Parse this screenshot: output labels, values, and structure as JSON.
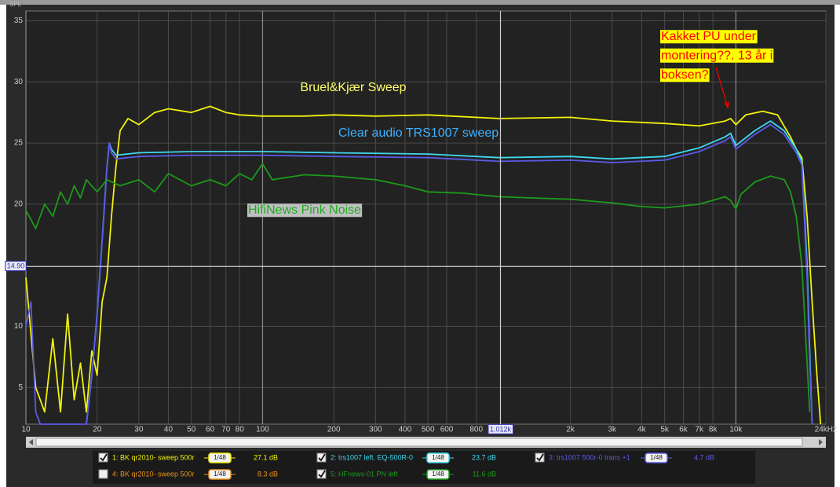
{
  "chart_data": {
    "type": "line",
    "y_label": "SPL",
    "xscale": "log",
    "xlim": [
      10,
      24000
    ],
    "ylim": [
      2,
      35.8
    ],
    "grid": true,
    "background": "#222222",
    "xticks": [
      10,
      20,
      30,
      40,
      50,
      60,
      70,
      80,
      100,
      200,
      300,
      400,
      500,
      600,
      800,
      {
        "value": 2000,
        "label": "2k"
      },
      {
        "value": 3000,
        "label": "3k"
      },
      {
        "value": 4000,
        "label": "4k"
      },
      {
        "value": 5000,
        "label": "5k"
      },
      {
        "value": 6000,
        "label": "6k"
      },
      {
        "value": 7000,
        "label": "7k"
      },
      {
        "value": 8000,
        "label": "8k"
      },
      {
        "value": 10000,
        "label": "10k"
      },
      {
        "value": 24000,
        "label": "24kHz"
      }
    ],
    "yticks": [
      5,
      10,
      20,
      25,
      30,
      35
    ],
    "cursor": {
      "x": 1012,
      "x_label": "1.012k",
      "y": 14.9,
      "y_label": "14.90"
    },
    "series": [
      {
        "name": "1: BK qr2010- sweep 500r",
        "color": "#f2f20a",
        "visible": true,
        "smoothing": "1/48",
        "readout": "27.1 dB",
        "x": [
          10,
          11,
          12,
          13,
          14,
          15,
          16,
          17,
          18,
          19,
          20,
          21,
          22,
          23,
          24,
          25,
          27,
          30,
          35,
          40,
          50,
          60,
          70,
          80,
          100,
          150,
          200,
          300,
          500,
          1000,
          2000,
          3000,
          5000,
          7000,
          9000,
          9500,
          10000,
          11000,
          13000,
          15000,
          17000,
          18000,
          19000,
          20000,
          21000,
          22000,
          22800
        ],
        "values": [
          14,
          5,
          3,
          9,
          3,
          11,
          4,
          7,
          3,
          8,
          6,
          12,
          14,
          19,
          23,
          26,
          27,
          26.5,
          27.5,
          27.8,
          27.5,
          28,
          27.5,
          27.3,
          27.2,
          27.2,
          27.3,
          27.2,
          27.3,
          27,
          27.1,
          26.8,
          26.6,
          26.4,
          26.8,
          27,
          26.5,
          27.3,
          27.6,
          27.3,
          25.5,
          24.5,
          23.8,
          19,
          12,
          6,
          2
        ]
      },
      {
        "name": "2: trs1007 left. EQ-500R-0",
        "color": "#3fd8f0",
        "visible": true,
        "smoothing": "1/48",
        "readout": "23.7 dB",
        "x": [
          18,
          19,
          20,
          21,
          22,
          22.5,
          23,
          24,
          30,
          50,
          100,
          200,
          500,
          1000,
          2000,
          3000,
          5000,
          7000,
          9000,
          9500,
          10000,
          12000,
          14000,
          16000,
          18000,
          19000,
          20000,
          20500,
          21000
        ],
        "values": [
          2,
          6,
          11,
          17,
          23,
          25,
          24.5,
          24,
          24.2,
          24.3,
          24.3,
          24.2,
          24.1,
          23.8,
          23.9,
          23.7,
          23.9,
          24.6,
          25.5,
          25.8,
          24.8,
          26,
          26.8,
          26,
          24.5,
          23.5,
          15,
          8,
          2
        ]
      },
      {
        "name": "3: trs1007 500r-0 trans +1",
        "color": "#5a5ae8",
        "visible": true,
        "smoothing": "1/48",
        "readout": "4.7 dB",
        "x": [
          10,
          10.5,
          11,
          11.5,
          12,
          14,
          18,
          19,
          20,
          21,
          22,
          22.5,
          23,
          24,
          30,
          50,
          100,
          200,
          500,
          1000,
          2000,
          3000,
          5000,
          7000,
          9000,
          9500,
          10000,
          12000,
          14000,
          16000,
          18000,
          19000,
          20000,
          20500,
          21000
        ],
        "values": [
          10,
          12,
          3,
          2,
          2,
          2,
          2,
          6,
          11,
          17,
          23,
          25,
          24.2,
          23.7,
          23.9,
          24,
          24,
          23.9,
          23.8,
          23.5,
          23.6,
          23.4,
          23.6,
          24.3,
          25.2,
          25.5,
          24.5,
          25.7,
          26.5,
          25.7,
          24.2,
          23.2,
          14,
          7,
          2
        ]
      },
      {
        "name": "4: BK qr2010- sweep 500r",
        "color": "#e8901a",
        "visible": false,
        "smoothing": "1/48",
        "readout": "8.3 dB",
        "x": [],
        "values": []
      },
      {
        "name": "5: HFnews-01 PN left",
        "color": "#1c9a1c",
        "visible": true,
        "smoothing": "1/48",
        "readout": "11.6 dB",
        "x": [
          10,
          11,
          12,
          13,
          14,
          15,
          16,
          17,
          18,
          20,
          22,
          25,
          30,
          35,
          40,
          50,
          60,
          70,
          80,
          90,
          100,
          110,
          150,
          200,
          300,
          400,
          500,
          700,
          1000,
          2000,
          3000,
          4000,
          5000,
          7000,
          9000,
          9500,
          10000,
          10500,
          12000,
          14000,
          16000,
          17000,
          18000,
          19000,
          20000,
          20500
        ],
        "values": [
          19.5,
          18,
          20,
          19,
          21,
          20,
          21.5,
          20.5,
          22,
          21,
          22,
          21.5,
          22,
          21,
          22.5,
          21.5,
          22,
          21.5,
          22.5,
          22,
          23.3,
          22,
          22.4,
          22.3,
          22,
          21.5,
          21,
          20.9,
          20.6,
          20.4,
          20.1,
          19.8,
          19.7,
          20,
          20.6,
          20.3,
          19.6,
          20.8,
          21.8,
          22.3,
          22,
          21,
          19,
          15,
          7,
          3
        ]
      }
    ],
    "annotations": [
      {
        "lines": [
          "Bruel&Kjær Sweep"
        ],
        "color": "#ffff66"
      },
      {
        "lines": [
          "Clear audio TRS1007 sweep"
        ],
        "color": "#3fb0ff"
      },
      {
        "lines": [
          "HifiNews Pink Noise"
        ],
        "color": "#22aa22",
        "background": "#c0c0c0"
      },
      {
        "lines": [
          "Kakket PU under",
          "montering??. 13 år i",
          "boksen?"
        ],
        "color": "#ff0000",
        "background": "#ffff00"
      }
    ]
  }
}
